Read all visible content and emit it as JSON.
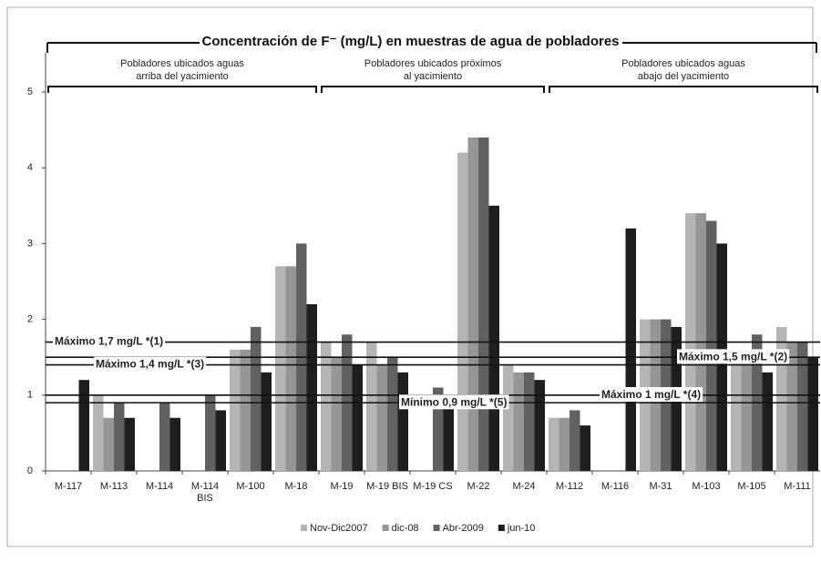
{
  "chart_data": {
    "type": "bar",
    "title": "Concentración de F⁻ (mg/L)  en muestras de agua de pobladores",
    "groups": [
      {
        "lines": [
          "Pobladores ubicados aguas",
          "arriba del yacimiento"
        ]
      },
      {
        "lines": [
          "Pobladores ubicados próximos",
          "al yacimiento"
        ]
      },
      {
        "lines": [
          "Pobladores ubicados aguas",
          "abajo del yacimiento"
        ]
      }
    ],
    "categories": [
      "M-117",
      "M-113",
      "M-114",
      "M-114 BIS",
      "M-100",
      "M-18",
      "M-19",
      "M-19 BIS",
      "M-19 CS",
      "M-22",
      "M-24",
      "M-112",
      "M-116",
      "M-31",
      "M-103",
      "M-105",
      "M-111"
    ],
    "series": [
      {
        "name": "Nov-Dic2007",
        "color": "#b5b5b5",
        "values": [
          null,
          1.0,
          null,
          null,
          1.6,
          2.7,
          1.7,
          1.7,
          null,
          4.2,
          1.4,
          0.7,
          null,
          2.0,
          3.4,
          1.5,
          1.9
        ]
      },
      {
        "name": "dic-08",
        "color": "#969696",
        "values": [
          null,
          0.7,
          null,
          null,
          1.6,
          2.7,
          1.5,
          1.4,
          null,
          4.4,
          1.3,
          0.7,
          null,
          2.0,
          3.4,
          1.5,
          1.7
        ]
      },
      {
        "name": "Abr-2009",
        "color": "#616161",
        "values": [
          null,
          0.9,
          0.9,
          1.0,
          1.9,
          3.0,
          1.8,
          1.5,
          1.1,
          4.4,
          1.3,
          0.8,
          null,
          2.0,
          3.3,
          1.8,
          1.7
        ]
      },
      {
        "name": "jun-10",
        "color": "#1e1e1e",
        "values": [
          1.2,
          0.7,
          0.7,
          0.8,
          1.3,
          2.2,
          1.4,
          1.3,
          1.0,
          3.5,
          1.2,
          0.6,
          3.2,
          1.9,
          3.0,
          1.3,
          1.5
        ]
      }
    ],
    "reference_lines": [
      {
        "value": 1.7,
        "label": "Máximo 1,7 mg/L *(1)"
      },
      {
        "value": 1.5,
        "label": "Máximo 1,5 mg/L *(2)"
      },
      {
        "value": 1.4,
        "label": "Máximo 1,4 mg/L *(3)"
      },
      {
        "value": 1.0,
        "label": "Máximo 1 mg/L *(4)"
      },
      {
        "value": 0.9,
        "label": "Mínimo 0,9 mg/L *(5)"
      }
    ],
    "ylim": [
      0,
      5
    ],
    "yticks": [
      0,
      1,
      2,
      3,
      4,
      5
    ],
    "grid": false,
    "legend": "bottom"
  }
}
